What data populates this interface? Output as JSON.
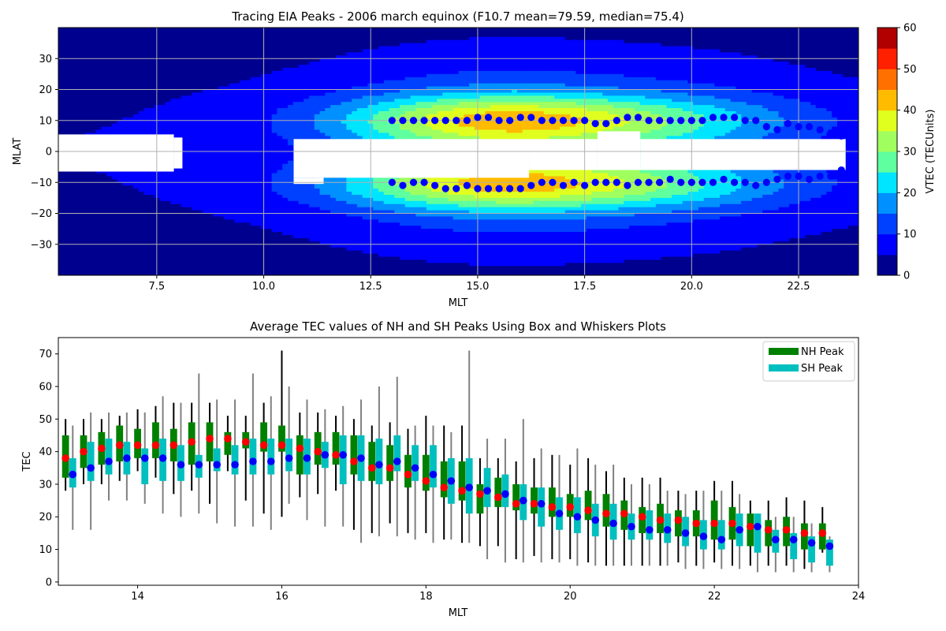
{
  "chart_data": [
    {
      "type": "heatmap",
      "title": "Tracing EIA Peaks - 2006 march equinox (F10.7 mean=79.59, median=75.4)",
      "xlabel": "MLT",
      "ylabel": "MLAT",
      "xlim": [
        5.2,
        23.9
      ],
      "ylim": [
        -40,
        40
      ],
      "xticks": [
        7.5,
        10.0,
        12.5,
        15.0,
        17.5,
        20.0,
        22.5
      ],
      "xticklabels": [
        "7.5",
        "10.0",
        "12.5",
        "15.0",
        "17.5",
        "20.0",
        "22.5"
      ],
      "yticks": [
        -30,
        -20,
        -10,
        0,
        10,
        20,
        30
      ],
      "yticklabels": [
        "−30",
        "−20",
        "−10",
        "0",
        "10",
        "20",
        "30"
      ],
      "grid": true,
      "colorbar": {
        "label": "VTEC (TECUnits)",
        "range": [
          0,
          60
        ],
        "levels": [
          0,
          5,
          10,
          15,
          20,
          25,
          30,
          35,
          40,
          45,
          50,
          55,
          60
        ],
        "colors": [
          "#00008f",
          "#0000ff",
          "#0040ff",
          "#0090ff",
          "#00e5ff",
          "#5fff9f",
          "#a0ff5f",
          "#e0ff1f",
          "#ffbb00",
          "#ff7000",
          "#ff2000",
          "#b00000"
        ],
        "ticks": [
          0,
          10,
          20,
          30,
          40,
          50,
          60
        ],
        "ticklabels": [
          "0",
          "10",
          "20",
          "30",
          "40",
          "50",
          "60"
        ]
      },
      "nh_peaks": {
        "mlt": [
          13.0,
          13.25,
          13.5,
          13.75,
          14.0,
          14.25,
          14.5,
          14.75,
          15.0,
          15.25,
          15.5,
          15.75,
          16.0,
          16.25,
          16.5,
          16.75,
          17.0,
          17.25,
          17.5,
          17.75,
          18.0,
          18.25,
          18.5,
          18.75,
          19.0,
          19.25,
          19.5,
          19.75,
          20.0,
          20.25,
          20.5,
          20.75,
          21.0,
          21.25,
          21.5,
          21.75,
          22.0,
          22.25,
          22.5,
          22.75,
          23.0,
          23.25,
          23.5
        ],
        "mlat": [
          10,
          10,
          10,
          10,
          10,
          10,
          10,
          10,
          11,
          11,
          10,
          10,
          11,
          11,
          10,
          10,
          10,
          10,
          10,
          9,
          9,
          10,
          11,
          11,
          10,
          10,
          10,
          10,
          10,
          10,
          11,
          11,
          11,
          10,
          10,
          8,
          7,
          9,
          8,
          8,
          7,
          6,
          5
        ]
      },
      "sh_peaks": {
        "mlt": [
          13.0,
          13.25,
          13.5,
          13.75,
          14.0,
          14.25,
          14.5,
          14.75,
          15.0,
          15.25,
          15.5,
          15.75,
          16.0,
          16.25,
          16.5,
          16.75,
          17.0,
          17.25,
          17.5,
          17.75,
          18.0,
          18.25,
          18.5,
          18.75,
          19.0,
          19.25,
          19.5,
          19.75,
          20.0,
          20.25,
          20.5,
          20.75,
          21.0,
          21.25,
          21.5,
          21.75,
          22.0,
          22.25,
          22.5,
          22.75,
          23.0,
          23.25,
          23.5
        ],
        "mlat": [
          -10,
          -11,
          -10,
          -10,
          -11,
          -12,
          -12,
          -11,
          -12,
          -12,
          -12,
          -12,
          -12,
          -11,
          -10,
          -10,
          -11,
          -10,
          -11,
          -10,
          -10,
          -10,
          -11,
          -10,
          -10,
          -10,
          -9,
          -10,
          -10,
          -10,
          -10,
          -9,
          -10,
          -10,
          -11,
          -10,
          -9,
          -8,
          -8,
          -9,
          -8,
          -8,
          -6
        ]
      }
    },
    {
      "type": "box",
      "title": "Average TEC values of NH and SH Peaks Using Box and Whiskers Plots",
      "xlabel": "MLT",
      "ylabel": "TEC",
      "xlim": [
        12.9,
        24.0
      ],
      "ylim": [
        -1,
        75
      ],
      "xticks": [
        14,
        16,
        18,
        20,
        22,
        24
      ],
      "xticklabels": [
        "14",
        "16",
        "18",
        "20",
        "22",
        "24"
      ],
      "yticks": [
        0,
        10,
        20,
        30,
        40,
        50,
        60,
        70
      ],
      "yticklabels": [
        "0",
        "10",
        "20",
        "30",
        "40",
        "50",
        "60",
        "70"
      ],
      "legend": {
        "position": "upper right",
        "entries": [
          {
            "label": "NH Peak",
            "color": "#008000"
          },
          {
            "label": "SH Peak",
            "color": "#00bfbf"
          }
        ]
      },
      "colors": {
        "nh_box": "#008000",
        "sh_box": "#00bfbf",
        "nh_whisker": "#000000",
        "sh_whisker": "#808080",
        "nh_mean": "#ff0000",
        "sh_mean": "#0000ff"
      },
      "series": [
        {
          "name": "NH Peak",
          "x": [
            13.0,
            13.25,
            13.5,
            13.75,
            14.0,
            14.25,
            14.5,
            14.75,
            15.0,
            15.25,
            15.5,
            15.75,
            16.0,
            16.25,
            16.5,
            16.75,
            17.0,
            17.25,
            17.5,
            17.75,
            18.0,
            18.25,
            18.5,
            18.75,
            19.0,
            19.25,
            19.5,
            19.75,
            20.0,
            20.25,
            20.5,
            20.75,
            21.0,
            21.25,
            21.5,
            21.75,
            22.0,
            22.25,
            22.5,
            22.75,
            23.0,
            23.25,
            23.5
          ],
          "q1": [
            32,
            35,
            36,
            37,
            38,
            38,
            37,
            36,
            37,
            39,
            41,
            40,
            40,
            33,
            36,
            36,
            33,
            31,
            31,
            29,
            28,
            26,
            25,
            21,
            23,
            22,
            21,
            20,
            20,
            19,
            17,
            16,
            15,
            15,
            14,
            14,
            13,
            13,
            11,
            11,
            11,
            10,
            10
          ],
          "q3": [
            45,
            45,
            46,
            48,
            47,
            49,
            47,
            49,
            49,
            46,
            46,
            49,
            48,
            45,
            46,
            46,
            45,
            43,
            42,
            39,
            39,
            37,
            37,
            30,
            32,
            30,
            29,
            29,
            27,
            28,
            27,
            25,
            23,
            24,
            22,
            22,
            25,
            23,
            21,
            19,
            20,
            18,
            18
          ],
          "whislo": [
            28,
            30,
            30,
            31,
            34,
            32,
            27,
            28,
            24,
            34,
            25,
            21,
            20,
            26,
            27,
            28,
            16,
            15,
            18,
            15,
            15,
            13,
            12,
            11,
            11,
            7,
            8,
            7,
            7,
            6,
            5,
            5,
            5,
            5,
            6,
            5,
            6,
            5,
            5,
            5,
            5,
            4,
            9
          ],
          "whishi": [
            50,
            50,
            50,
            51,
            53,
            54,
            55,
            55,
            55,
            51,
            51,
            55,
            71,
            52,
            52,
            51,
            50,
            48,
            49,
            47,
            51,
            48,
            48,
            38,
            38,
            37,
            38,
            39,
            36,
            38,
            34,
            32,
            32,
            32,
            28,
            28,
            31,
            31,
            25,
            25,
            26,
            25,
            23
          ],
          "mean": [
            38,
            40,
            41,
            42,
            42,
            42,
            42,
            43,
            44,
            44,
            43,
            42,
            42,
            41,
            40,
            39,
            37,
            35,
            35,
            33,
            31,
            29,
            28,
            27,
            26,
            24,
            24,
            23,
            23,
            22,
            21,
            21,
            20,
            19,
            19,
            18,
            18,
            18,
            17,
            16,
            16,
            15,
            15
          ]
        },
        {
          "name": "SH Peak",
          "x": [
            13.1,
            13.35,
            13.6,
            13.85,
            14.1,
            14.35,
            14.6,
            14.85,
            15.1,
            15.35,
            15.6,
            15.85,
            16.1,
            16.35,
            16.6,
            16.85,
            17.1,
            17.35,
            17.6,
            17.85,
            18.1,
            18.35,
            18.6,
            18.85,
            19.1,
            19.35,
            19.6,
            19.85,
            20.1,
            20.35,
            20.6,
            20.85,
            21.1,
            21.35,
            21.6,
            21.85,
            22.1,
            22.35,
            22.6,
            22.85,
            23.1,
            23.35,
            23.6
          ],
          "q1": [
            29,
            31,
            33,
            33,
            30,
            31,
            31,
            32,
            34,
            33,
            33,
            33,
            34,
            33,
            35,
            30,
            31,
            30,
            34,
            31,
            29,
            24,
            21,
            23,
            23,
            19,
            17,
            16,
            15,
            14,
            13,
            13,
            13,
            12,
            11,
            10,
            10,
            11,
            9,
            9,
            7,
            6,
            5
          ],
          "q3": [
            38,
            43,
            44,
            43,
            41,
            44,
            42,
            39,
            41,
            42,
            44,
            44,
            44,
            44,
            43,
            45,
            45,
            44,
            45,
            42,
            42,
            38,
            38,
            35,
            33,
            30,
            29,
            26,
            26,
            24,
            24,
            21,
            22,
            21,
            20,
            19,
            19,
            21,
            21,
            16,
            15,
            14,
            13
          ],
          "whislo": [
            16,
            16,
            25,
            25,
            24,
            21,
            20,
            21,
            18,
            17,
            17,
            16,
            24,
            19,
            17,
            17,
            12,
            14,
            14,
            13,
            12,
            13,
            12,
            7,
            6,
            6,
            6,
            6,
            5,
            5,
            5,
            5,
            5,
            5,
            4,
            4,
            4,
            4,
            3,
            3,
            3,
            3,
            3
          ],
          "whishi": [
            48,
            52,
            52,
            52,
            52,
            57,
            55,
            64,
            56,
            56,
            64,
            57,
            60,
            56,
            53,
            54,
            56,
            60,
            63,
            48,
            48,
            46,
            71,
            44,
            44,
            50,
            41,
            39,
            41,
            36,
            36,
            30,
            30,
            28,
            27,
            28,
            28,
            27,
            21,
            20,
            20,
            18,
            14
          ],
          "mean": [
            33,
            35,
            37,
            38,
            38,
            38,
            36,
            36,
            36,
            36,
            37,
            37,
            38,
            38,
            39,
            39,
            38,
            36,
            37,
            35,
            33,
            31,
            29,
            28,
            27,
            25,
            24,
            21,
            20,
            19,
            18,
            17,
            16,
            16,
            15,
            14,
            13,
            16,
            17,
            13,
            13,
            12,
            11
          ]
        }
      ]
    }
  ]
}
